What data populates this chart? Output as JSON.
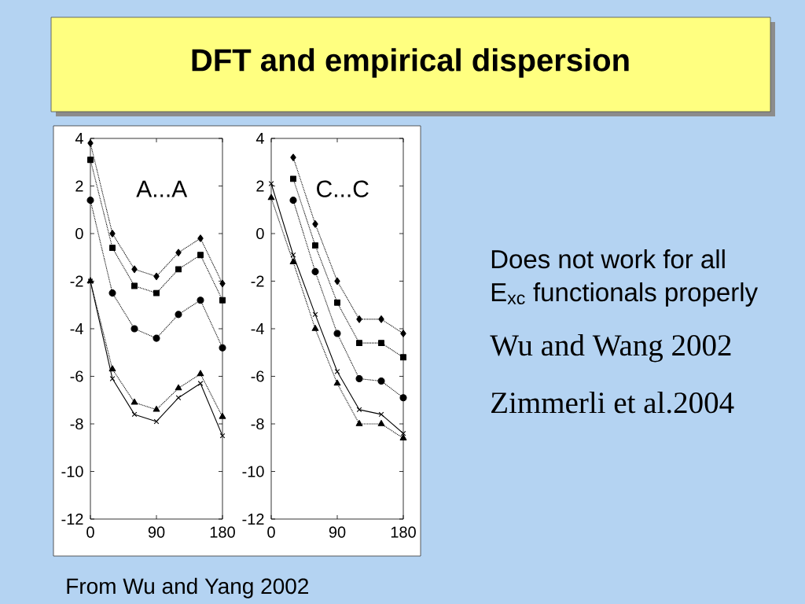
{
  "chart_data": [
    {
      "type": "other",
      "title": "DFT and empirical dispersion",
      "annotations": [
        "Does not work for all",
        "E$_{xc}$ functionals properly",
        "Wu and Wang 2002",
        "Zimmerli et al.2004",
        "From Wu and Yang 2002"
      ]
    },
    {
      "type": "line",
      "title": "A...A",
      "x": [
        0,
        30,
        60,
        90,
        120,
        150,
        180
      ],
      "xlim": [
        0,
        180
      ],
      "xticks": [
        0,
        90,
        180
      ],
      "ylim": [
        -12,
        4
      ],
      "yticks": [
        -12,
        -10,
        -8,
        -6,
        -4,
        -2,
        0,
        2,
        4
      ],
      "series": [
        {
          "color": "#000000",
          "marker": "diamond",
          "line_style": "dotted",
          "values": [
            3.8,
            0.0,
            -1.5,
            -1.8,
            -0.8,
            -0.2,
            -2.1
          ]
        },
        {
          "color": "#000000",
          "marker": "square",
          "line_style": "dotted",
          "values": [
            3.1,
            -0.6,
            -2.2,
            -2.5,
            -1.5,
            -0.9,
            -2.8
          ]
        },
        {
          "color": "#000000",
          "marker": "circle",
          "line_style": "dotted",
          "values": [
            1.4,
            -2.5,
            -4.0,
            -4.4,
            -3.4,
            -2.8,
            -4.8
          ]
        },
        {
          "color": "#000000",
          "marker": "cross",
          "line_style": "solid",
          "values": [
            -2.0,
            -6.1,
            -7.6,
            -7.9,
            -6.9,
            -6.3,
            -8.5
          ]
        },
        {
          "color": "#000000",
          "marker": "triangle",
          "line_style": "dotted",
          "values": [
            -2.0,
            -5.7,
            -7.1,
            -7.4,
            -6.5,
            -5.9,
            -7.7
          ]
        }
      ]
    },
    {
      "type": "line",
      "title": "C...C",
      "x": [
        0,
        30,
        60,
        90,
        120,
        150,
        180
      ],
      "xlim": [
        0,
        180
      ],
      "xticks": [
        0,
        90,
        180
      ],
      "ylim": [
        -12,
        4
      ],
      "yticks": [
        -12,
        -10,
        -8,
        -6,
        -4,
        -2,
        0,
        2,
        4
      ],
      "series": [
        {
          "color": "#000000",
          "marker": "diamond",
          "line_style": "dotted",
          "values": [
            null,
            3.2,
            0.4,
            -2.0,
            -3.6,
            -3.6,
            -4.2
          ]
        },
        {
          "color": "#000000",
          "marker": "square",
          "line_style": "dotted",
          "values": [
            null,
            2.3,
            -0.5,
            -2.9,
            -4.6,
            -4.6,
            -5.2
          ]
        },
        {
          "color": "#000000",
          "marker": "circle",
          "line_style": "dotted",
          "values": [
            null,
            1.4,
            -1.6,
            -4.2,
            -6.1,
            -6.2,
            -6.9
          ]
        },
        {
          "color": "#000000",
          "marker": "cross",
          "line_style": "solid",
          "values": [
            2.1,
            -0.9,
            -3.4,
            -5.8,
            -7.4,
            -7.6,
            -8.4
          ]
        },
        {
          "color": "#000000",
          "marker": "triangle",
          "line_style": "dotted",
          "values": [
            1.5,
            -1.2,
            -4.0,
            -6.3,
            -8.0,
            -8.0,
            -8.6
          ]
        }
      ]
    }
  ]
}
